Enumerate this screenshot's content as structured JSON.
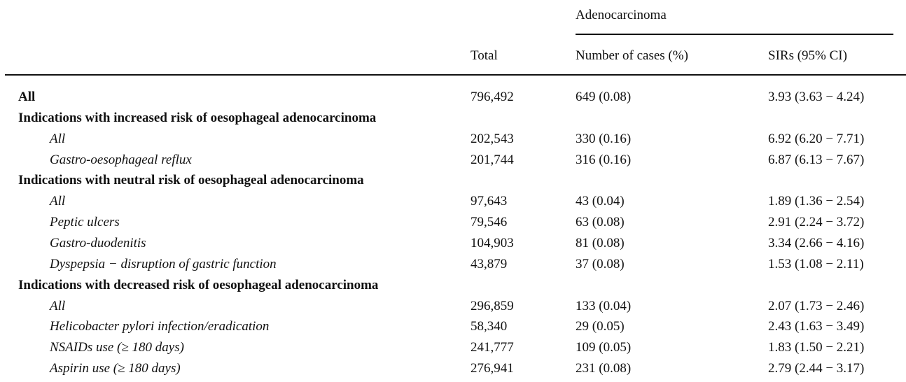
{
  "table": {
    "header_group": "Adenocarcinoma",
    "columns": [
      "Total",
      "Number of cases (%)",
      "SIRs (95% CI)"
    ],
    "overall": {
      "label": "All",
      "total": "796,492",
      "cases": "649 (0.08)",
      "sir": "3.93 (3.63 − 4.24)"
    },
    "sections": [
      {
        "title": "Indications with increased risk of oesophageal adenocarcinoma",
        "rows": [
          {
            "label": "All",
            "total": "202,543",
            "cases": "330 (0.16)",
            "sir": "6.92 (6.20 − 7.71)"
          },
          {
            "label": "Gastro-oesophageal reflux",
            "total": "201,744",
            "cases": "316 (0.16)",
            "sir": "6.87 (6.13 − 7.67)"
          }
        ]
      },
      {
        "title": "Indications with neutral risk of oesophageal adenocarcinoma",
        "rows": [
          {
            "label": "All",
            "total": "97,643",
            "cases": "43 (0.04)",
            "sir": "1.89 (1.36 − 2.54)"
          },
          {
            "label": "Peptic ulcers",
            "total": "79,546",
            "cases": "63 (0.08)",
            "sir": "2.91 (2.24 − 3.72)"
          },
          {
            "label": "Gastro-duodenitis",
            "total": "104,903",
            "cases": "81 (0.08)",
            "sir": "3.34 (2.66 − 4.16)"
          },
          {
            "label": "Dyspepsia − disruption of gastric function",
            "total": "43,879",
            "cases": "37 (0.08)",
            "sir": "1.53 (1.08 − 2.11)"
          }
        ]
      },
      {
        "title": "Indications with decreased risk of oesophageal adenocarcinoma",
        "rows": [
          {
            "label": "All",
            "total": "296,859",
            "cases": "133 (0.04)",
            "sir": "2.07 (1.73 − 2.46)"
          },
          {
            "label": "Helicobacter pylori infection/eradication",
            "total": "58,340",
            "cases": "29 (0.05)",
            "sir": "2.43 (1.63 − 3.49)"
          },
          {
            "label": "NSAIDs use (≥ 180 days)",
            "total": "241,777",
            "cases": "109 (0.05)",
            "sir": "1.83 (1.50 − 2.21)"
          },
          {
            "label": "Aspirin use (≥ 180 days)",
            "total": "276,941",
            "cases": "231 (0.08)",
            "sir": "2.79 (2.44 − 3.17)"
          }
        ]
      }
    ]
  }
}
